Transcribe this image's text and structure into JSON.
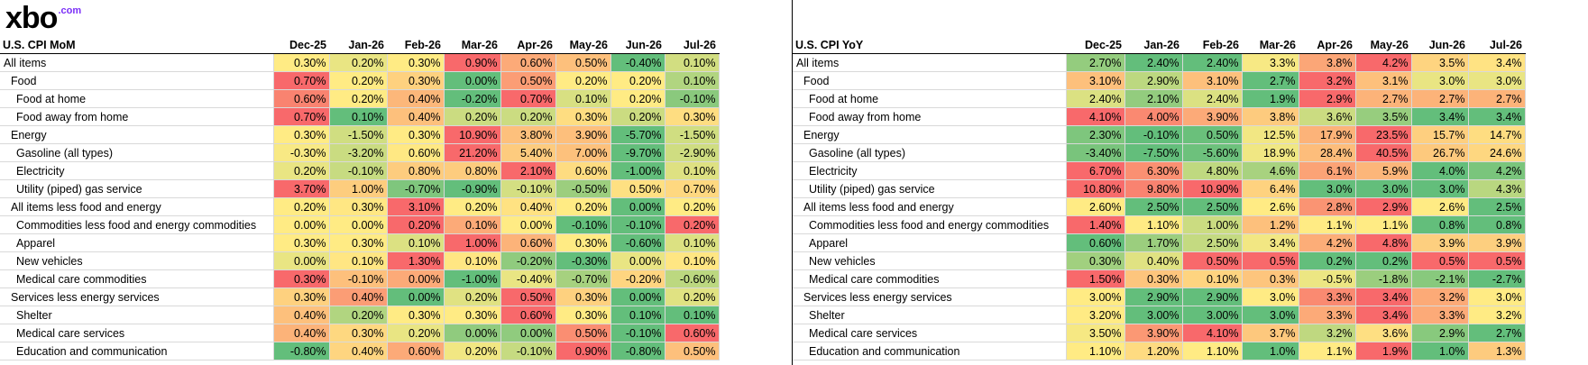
{
  "brand": {
    "name": "xbo",
    "suffix": ".com"
  },
  "colors": {
    "high": "#f8696b",
    "mid": "#ffeb84",
    "low": "#63be7b"
  },
  "chart_data": [
    {
      "type": "table",
      "title": "U.S. CPI MoM",
      "columns": [
        "Dec-25",
        "Jan-26",
        "Feb-26",
        "Mar-26",
        "Apr-26",
        "May-26",
        "Jun-26",
        "Jul-26"
      ],
      "rows": [
        {
          "label": "All items",
          "indent": 0,
          "values": [
            "0.30%",
            "0.20%",
            "0.30%",
            "0.90%",
            "0.60%",
            "0.50%",
            "-0.40%",
            "0.10%"
          ]
        },
        {
          "label": "Food",
          "indent": 1,
          "values": [
            "0.70%",
            "0.20%",
            "0.30%",
            "0.00%",
            "0.50%",
            "0.20%",
            "0.20%",
            "0.10%"
          ]
        },
        {
          "label": "Food at home",
          "indent": 2,
          "values": [
            "0.60%",
            "0.20%",
            "0.40%",
            "-0.20%",
            "0.70%",
            "0.10%",
            "0.20%",
            "-0.10%"
          ]
        },
        {
          "label": "Food away from home",
          "indent": 2,
          "values": [
            "0.70%",
            "0.10%",
            "0.40%",
            "0.20%",
            "0.20%",
            "0.30%",
            "0.20%",
            "0.30%"
          ]
        },
        {
          "label": "Energy",
          "indent": 1,
          "values": [
            "0.30%",
            "-1.50%",
            "0.30%",
            "10.90%",
            "3.80%",
            "3.90%",
            "-5.70%",
            "-1.50%"
          ]
        },
        {
          "label": "Gasoline (all types)",
          "indent": 2,
          "values": [
            "-0.30%",
            "-3.20%",
            "0.60%",
            "21.20%",
            "5.40%",
            "7.00%",
            "-9.70%",
            "-2.90%"
          ]
        },
        {
          "label": "Electricity",
          "indent": 2,
          "values": [
            "0.20%",
            "-0.10%",
            "0.80%",
            "0.80%",
            "2.10%",
            "0.60%",
            "-1.00%",
            "0.10%"
          ]
        },
        {
          "label": "Utility (piped) gas service",
          "indent": 2,
          "values": [
            "3.70%",
            "1.00%",
            "-0.70%",
            "-0.90%",
            "-0.10%",
            "-0.50%",
            "0.50%",
            "0.70%"
          ]
        },
        {
          "label": "All items less food and energy",
          "indent": 1,
          "values": [
            "0.20%",
            "0.30%",
            "3.10%",
            "0.20%",
            "0.40%",
            "0.20%",
            "0.00%",
            "0.20%"
          ]
        },
        {
          "label": "Commodities less food and energy commodities",
          "indent": 2,
          "values": [
            "0.00%",
            "0.00%",
            "0.20%",
            "0.10%",
            "0.00%",
            "-0.10%",
            "-0.10%",
            "0.20%"
          ]
        },
        {
          "label": "Apparel",
          "indent": 2,
          "values": [
            "0.30%",
            "0.30%",
            "0.10%",
            "1.00%",
            "0.60%",
            "0.30%",
            "-0.60%",
            "0.10%"
          ]
        },
        {
          "label": "New vehicles",
          "indent": 2,
          "values": [
            "0.00%",
            "0.10%",
            "1.30%",
            "0.10%",
            "-0.20%",
            "-0.30%",
            "0.00%",
            "0.10%"
          ]
        },
        {
          "label": "Medical care commodities",
          "indent": 2,
          "values": [
            "0.30%",
            "-0.10%",
            "0.00%",
            "-1.00%",
            "-0.40%",
            "-0.70%",
            "-0.20%",
            "-0.60%"
          ]
        },
        {
          "label": "Services less energy services",
          "indent": 1,
          "values": [
            "0.30%",
            "0.40%",
            "0.00%",
            "0.20%",
            "0.50%",
            "0.30%",
            "0.00%",
            "0.20%"
          ]
        },
        {
          "label": "Shelter",
          "indent": 2,
          "values": [
            "0.40%",
            "0.20%",
            "0.30%",
            "0.30%",
            "0.60%",
            "0.30%",
            "0.10%",
            "0.10%"
          ]
        },
        {
          "label": "Medical care services",
          "indent": 2,
          "values": [
            "0.40%",
            "0.30%",
            "0.20%",
            "0.00%",
            "0.00%",
            "0.50%",
            "-0.10%",
            "0.60%"
          ]
        },
        {
          "label": "Education and communication",
          "indent": 2,
          "values": [
            "-0.80%",
            "0.40%",
            "0.60%",
            "0.20%",
            "-0.10%",
            "0.90%",
            "-0.80%",
            "0.50%"
          ]
        }
      ]
    },
    {
      "type": "table",
      "title": "U.S. CPI YoY",
      "columns": [
        "Dec-25",
        "Jan-26",
        "Feb-26",
        "Mar-26",
        "Apr-26",
        "May-26",
        "Jun-26",
        "Jul-26"
      ],
      "rows": [
        {
          "label": "All items",
          "indent": 0,
          "values": [
            "2.70%",
            "2.40%",
            "2.40%",
            "3.3%",
            "3.8%",
            "4.2%",
            "3.5%",
            "3.4%"
          ]
        },
        {
          "label": "Food",
          "indent": 1,
          "values": [
            "3.10%",
            "2.90%",
            "3.10%",
            "2.7%",
            "3.2%",
            "3.1%",
            "3.0%",
            "3.0%"
          ]
        },
        {
          "label": "Food at home",
          "indent": 2,
          "values": [
            "2.40%",
            "2.10%",
            "2.40%",
            "1.9%",
            "2.9%",
            "2.7%",
            "2.7%",
            "2.7%"
          ]
        },
        {
          "label": "Food away from home",
          "indent": 2,
          "values": [
            "4.10%",
            "4.00%",
            "3.90%",
            "3.8%",
            "3.6%",
            "3.5%",
            "3.4%",
            "3.4%"
          ]
        },
        {
          "label": "Energy",
          "indent": 1,
          "values": [
            "2.30%",
            "-0.10%",
            "0.50%",
            "12.5%",
            "17.9%",
            "23.5%",
            "15.7%",
            "14.7%"
          ]
        },
        {
          "label": "Gasoline (all types)",
          "indent": 2,
          "values": [
            "-3.40%",
            "-7.50%",
            "-5.60%",
            "18.9%",
            "28.4%",
            "40.5%",
            "26.7%",
            "24.6%"
          ]
        },
        {
          "label": "Electricity",
          "indent": 2,
          "values": [
            "6.70%",
            "6.30%",
            "4.80%",
            "4.6%",
            "6.1%",
            "5.9%",
            "4.0%",
            "4.2%"
          ]
        },
        {
          "label": "Utility (piped) gas service",
          "indent": 2,
          "values": [
            "10.80%",
            "9.80%",
            "10.90%",
            "6.4%",
            "3.0%",
            "3.0%",
            "3.0%",
            "4.3%"
          ]
        },
        {
          "label": "All items less food and energy",
          "indent": 1,
          "values": [
            "2.60%",
            "2.50%",
            "2.50%",
            "2.6%",
            "2.8%",
            "2.9%",
            "2.6%",
            "2.5%"
          ]
        },
        {
          "label": "Commodities less food and energy commodities",
          "indent": 2,
          "values": [
            "1.40%",
            "1.10%",
            "1.00%",
            "1.2%",
            "1.1%",
            "1.1%",
            "0.8%",
            "0.8%"
          ]
        },
        {
          "label": "Apparel",
          "indent": 2,
          "values": [
            "0.60%",
            "1.70%",
            "2.50%",
            "3.4%",
            "4.2%",
            "4.8%",
            "3.9%",
            "3.9%"
          ]
        },
        {
          "label": "New vehicles",
          "indent": 2,
          "values": [
            "0.30%",
            "0.40%",
            "0.50%",
            "0.5%",
            "0.2%",
            "0.2%",
            "0.5%",
            "0.5%"
          ]
        },
        {
          "label": "Medical care commodities",
          "indent": 2,
          "values": [
            "1.50%",
            "0.30%",
            "0.10%",
            "0.3%",
            "-0.5%",
            "-1.8%",
            "-2.1%",
            "-2.7%"
          ]
        },
        {
          "label": "Services less energy services",
          "indent": 1,
          "values": [
            "3.00%",
            "2.90%",
            "2.90%",
            "3.0%",
            "3.3%",
            "3.4%",
            "3.2%",
            "3.0%"
          ]
        },
        {
          "label": "Shelter",
          "indent": 2,
          "values": [
            "3.20%",
            "3.00%",
            "3.00%",
            "3.0%",
            "3.3%",
            "3.4%",
            "3.3%",
            "3.2%"
          ]
        },
        {
          "label": "Medical care services",
          "indent": 2,
          "values": [
            "3.50%",
            "3.90%",
            "4.10%",
            "3.7%",
            "3.2%",
            "3.6%",
            "2.9%",
            "2.7%"
          ]
        },
        {
          "label": "Education and communication",
          "indent": 2,
          "values": [
            "1.10%",
            "1.20%",
            "1.10%",
            "1.0%",
            "1.1%",
            "1.9%",
            "1.0%",
            "1.3%"
          ]
        }
      ]
    }
  ]
}
